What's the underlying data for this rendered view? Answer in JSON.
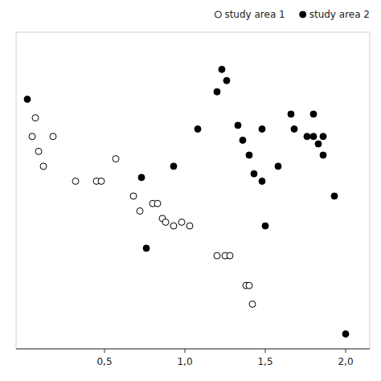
{
  "chart_data": {
    "type": "scatter",
    "series": [
      {
        "name": "study area 1",
        "color": "#000000",
        "marker": "hollow-circle",
        "x": [
          0.05,
          0.07,
          0.09,
          0.12,
          0.18,
          0.32,
          0.45,
          0.48,
          0.57,
          0.68,
          0.72,
          0.8,
          0.83,
          0.86,
          0.88,
          0.93,
          0.98,
          1.03,
          1.2,
          1.25,
          1.28,
          1.38,
          1.4,
          1.42
        ],
        "values": [
          0.62,
          0.67,
          0.58,
          0.54,
          0.62,
          0.5,
          0.5,
          0.5,
          0.56,
          0.46,
          0.42,
          0.44,
          0.44,
          0.4,
          0.39,
          0.38,
          0.39,
          0.38,
          0.3,
          0.3,
          0.3,
          0.22,
          0.22,
          0.17
        ]
      },
      {
        "name": "study area 2",
        "color": "#000000",
        "marker": "circle",
        "x": [
          0.02,
          0.73,
          0.76,
          0.93,
          1.08,
          1.2,
          1.23,
          1.26,
          1.33,
          1.36,
          1.4,
          1.43,
          1.48,
          1.48,
          1.5,
          1.58,
          1.66,
          1.68,
          1.76,
          1.8,
          1.8,
          1.83,
          1.86,
          1.86,
          1.93,
          2.0
        ],
        "values": [
          0.72,
          0.51,
          0.32,
          0.54,
          0.64,
          0.74,
          0.8,
          0.77,
          0.65,
          0.61,
          0.57,
          0.52,
          0.5,
          0.64,
          0.38,
          0.54,
          0.68,
          0.64,
          0.62,
          0.62,
          0.68,
          0.6,
          0.57,
          0.62,
          0.46,
          0.09
        ]
      }
    ],
    "xlim": [
      -0.05,
      2.15
    ],
    "ylim": [
      0.05,
      0.9
    ],
    "xticks": [
      {
        "value": 0.5,
        "label": "0,5"
      },
      {
        "value": 1.0,
        "label": "1,0"
      },
      {
        "value": 1.5,
        "label": "1,5"
      },
      {
        "value": 2.0,
        "label": "2,0"
      }
    ],
    "tick_labels": "x",
    "legend": "upper right",
    "grid": false
  }
}
